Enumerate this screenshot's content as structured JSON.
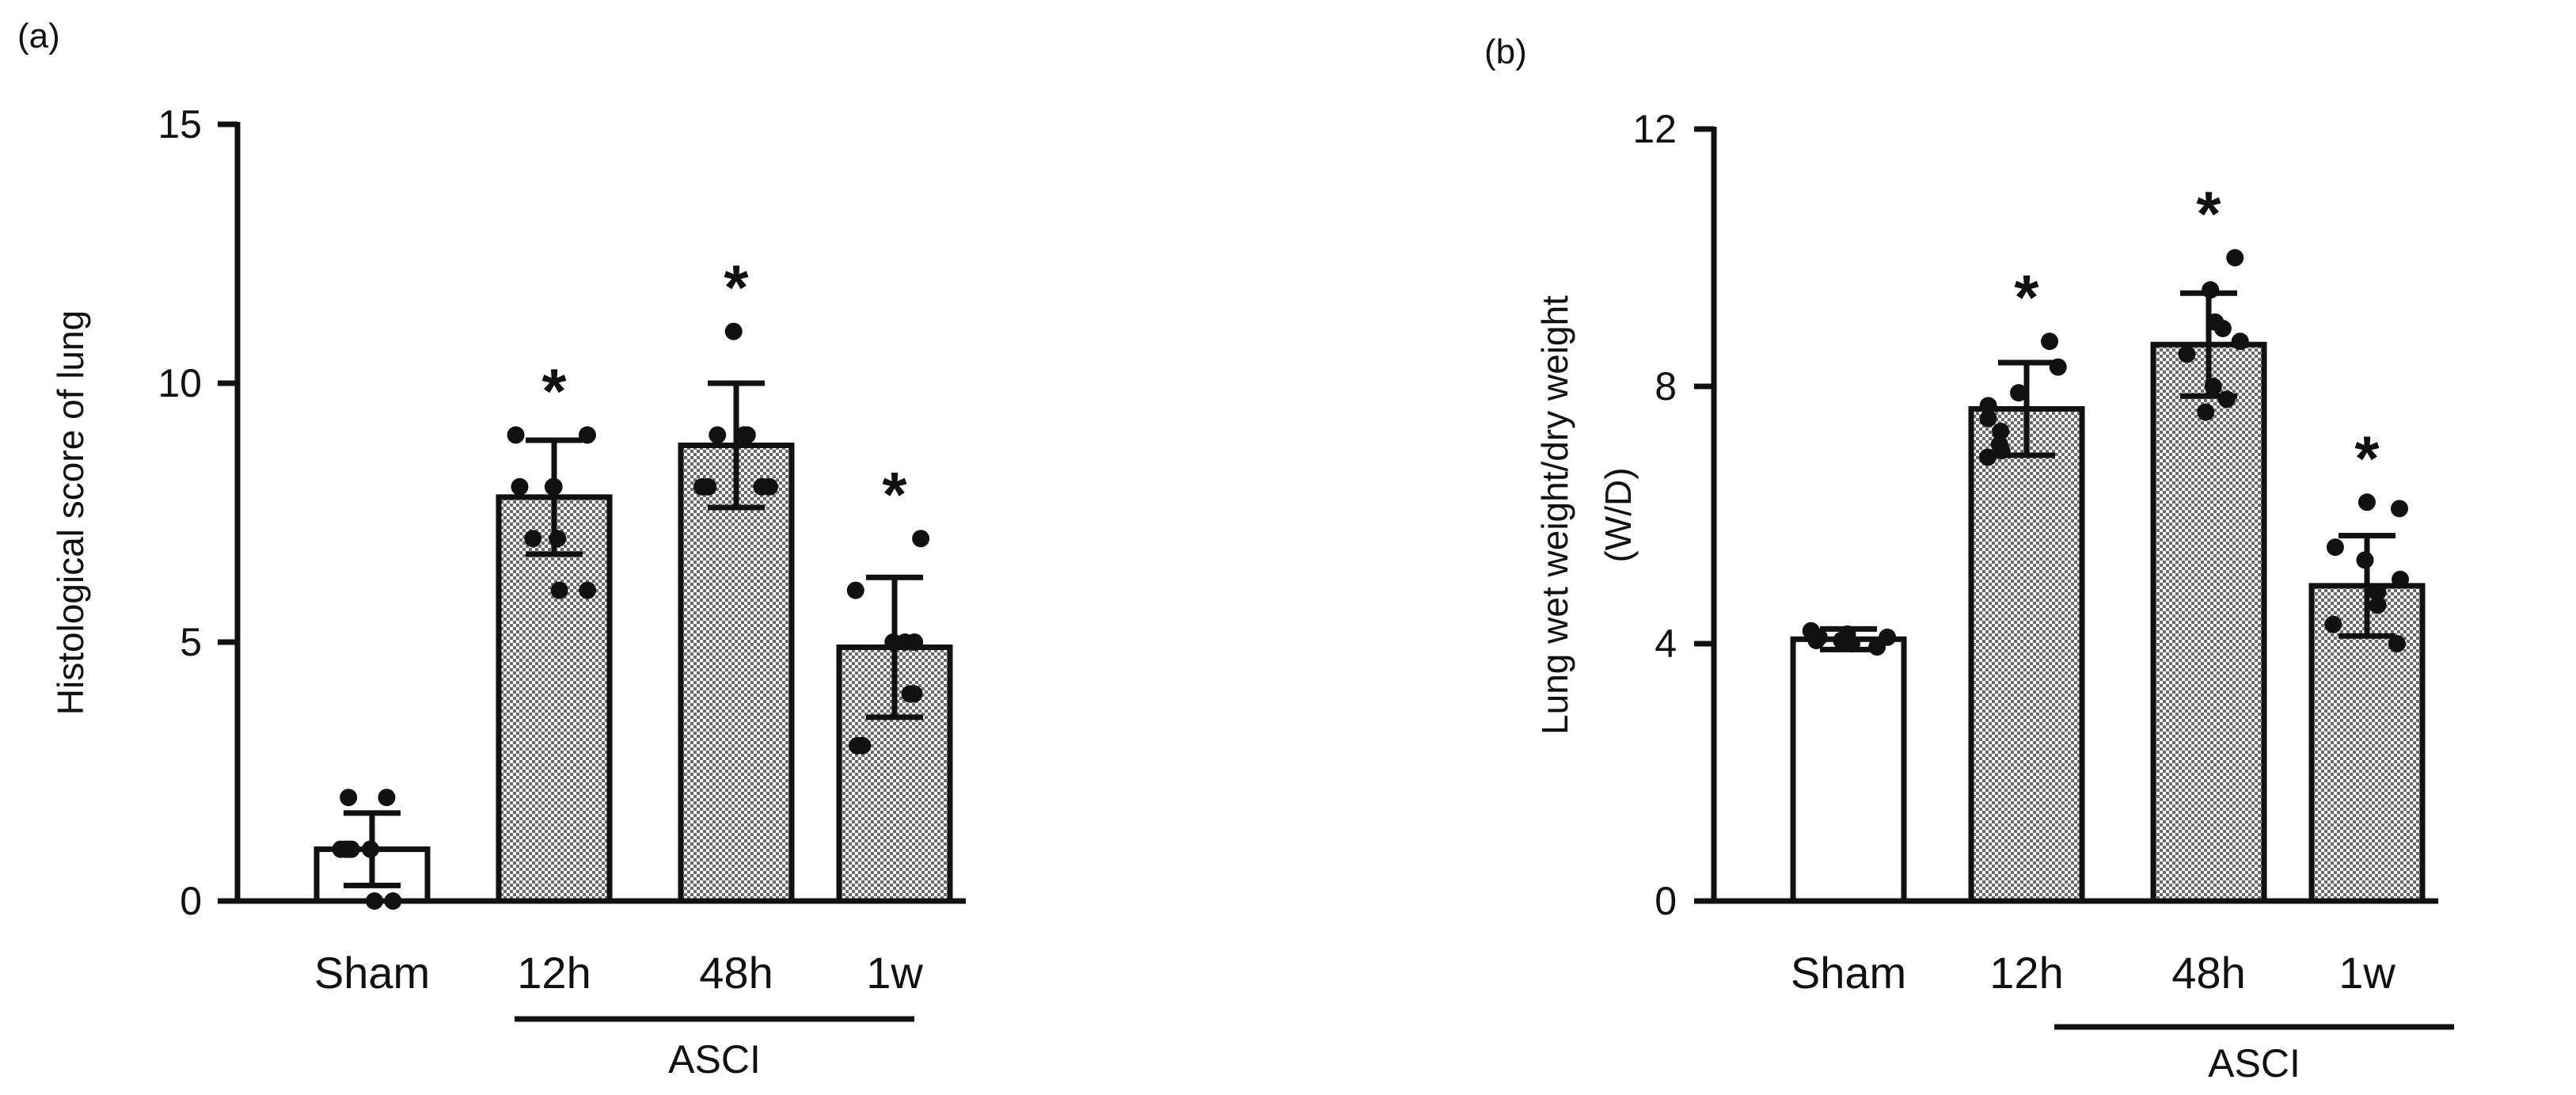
{
  "chart_data": [
    {
      "type": "bar",
      "panel_label": "(a)",
      "ylabel": "Histological score of lung",
      "ylabel_lines": [
        "Histological score of lung"
      ],
      "xlabel": "",
      "ylim": [
        0,
        15
      ],
      "yticks": [
        0,
        5,
        10,
        15
      ],
      "categories": [
        "Sham",
        "12h",
        "48h",
        "1w"
      ],
      "values": [
        1.0,
        7.8,
        8.8,
        4.9
      ],
      "error": [
        0.7,
        1.1,
        1.2,
        1.35
      ],
      "significance": [
        "",
        "*",
        "*",
        "*"
      ],
      "group_label": "ASCI",
      "group_span": [
        "12h",
        "1w"
      ],
      "points": [
        [
          2.0,
          2.0,
          1.0,
          1.0,
          1.0,
          1.0,
          1.0,
          0.0,
          0.0
        ],
        [
          9.0,
          9.0,
          8.0,
          8.0,
          8.0,
          7.0,
          7.0,
          6.0,
          6.0
        ],
        [
          11.0,
          9.0,
          9.0,
          9.0,
          9.0,
          8.0,
          8.0,
          8.0,
          8.0
        ],
        [
          7.0,
          6.0,
          5.0,
          5.0,
          5.0,
          4.0,
          4.0,
          3.0,
          3.0
        ]
      ],
      "bar_fill": [
        "plain",
        "checkered",
        "checkered",
        "checkered"
      ],
      "grid": false,
      "legend": "none"
    },
    {
      "type": "bar",
      "panel_label": "(b)",
      "ylabel": "Lung wet weight/dry weight (W/D)",
      "ylabel_lines": [
        "Lung wet weight/dry weight",
        "(W/D)"
      ],
      "xlabel": "",
      "ylim": [
        0,
        12
      ],
      "yticks": [
        0,
        4,
        8,
        12
      ],
      "categories": [
        "Sham",
        "12h",
        "48h",
        "1w"
      ],
      "values": [
        4.07,
        7.65,
        8.65,
        4.9
      ],
      "error": [
        0.16,
        0.72,
        0.8,
        0.78
      ],
      "significance": [
        "",
        "*",
        "*",
        "*"
      ],
      "group_label": "ASCI",
      "group_span": [
        "12h",
        "1w"
      ],
      "points": [
        [
          4.2,
          4.15,
          4.1,
          4.05,
          4.0,
          4.0,
          4.1,
          3.95,
          4.05
        ],
        [
          8.7,
          8.3,
          7.7,
          7.5,
          7.3,
          7.1,
          7.0,
          6.9,
          7.9
        ],
        [
          10.0,
          9.5,
          9.0,
          8.7,
          8.5,
          8.0,
          7.8,
          7.6,
          8.9
        ],
        [
          6.2,
          6.1,
          5.5,
          5.0,
          4.8,
          4.6,
          4.3,
          4.0,
          5.3
        ]
      ],
      "bar_fill": [
        "plain",
        "checkered",
        "checkered",
        "checkered"
      ],
      "grid": false,
      "legend": "none"
    }
  ]
}
